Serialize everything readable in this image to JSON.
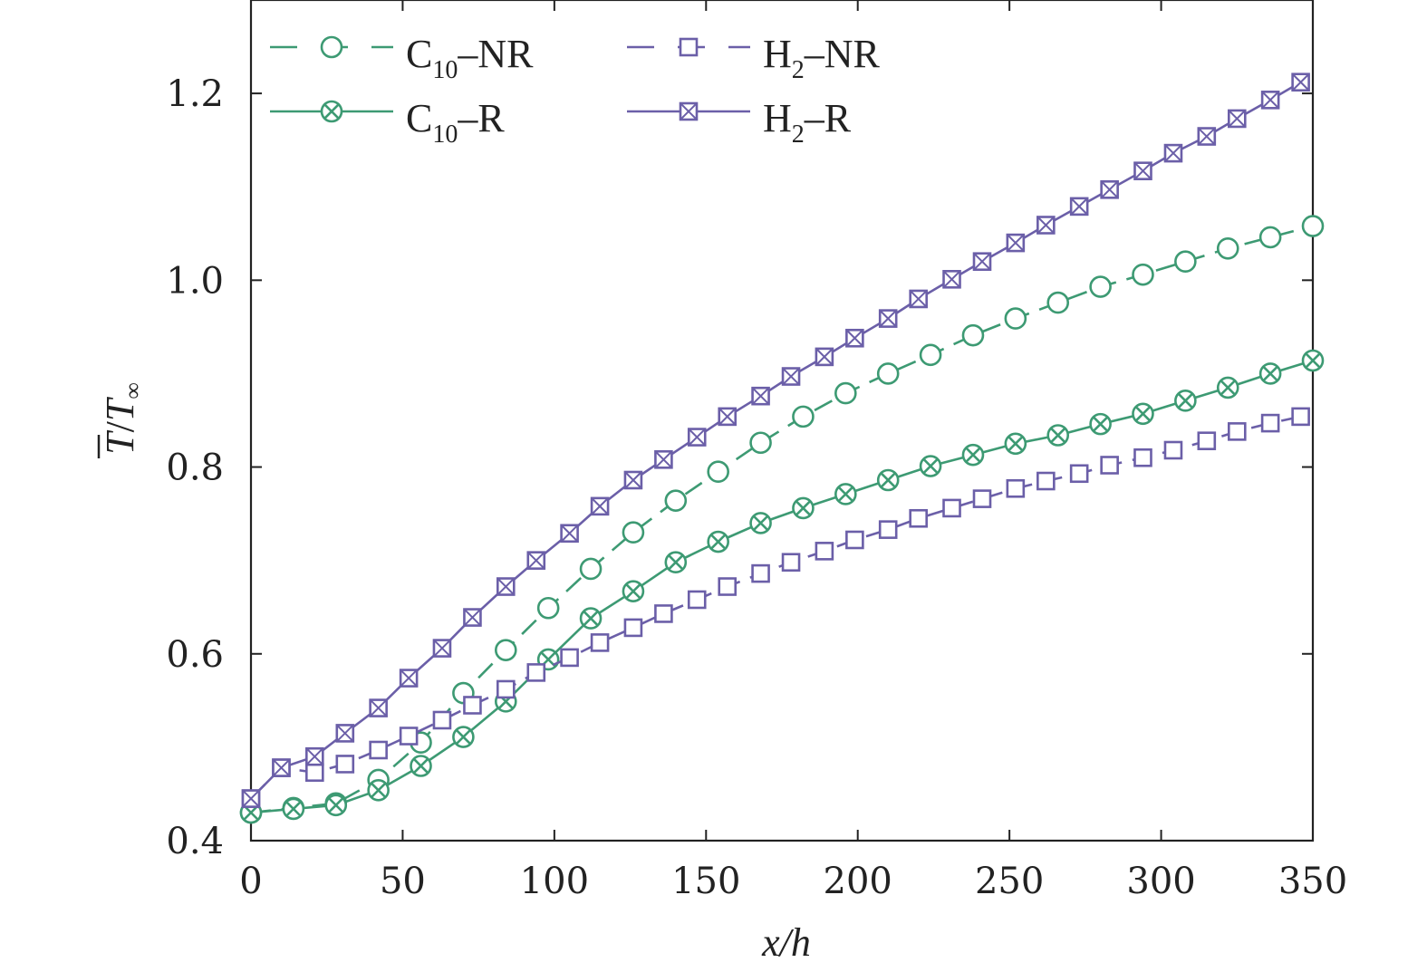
{
  "chart_data": {
    "type": "line",
    "xlabel": "x/h",
    "ylabel": "T/T∞",
    "ylabel_parts": {
      "main": "T",
      "sep": "/",
      "sub": "T",
      "subscript": "∞"
    },
    "xlim": [
      0,
      350
    ],
    "ylim": [
      0.4,
      1.3
    ],
    "xticks": [
      0,
      50,
      100,
      150,
      200,
      250,
      300,
      350
    ],
    "xtick_labels": [
      "0",
      "50",
      "100",
      "150",
      "200",
      "250",
      "300",
      "350"
    ],
    "yticks": [
      0.4,
      0.6,
      0.8,
      1.0,
      1.2
    ],
    "ytick_labels": [
      "0.4",
      "0.6",
      "0.8",
      "1.0",
      "1.2"
    ],
    "legend_position": "top-left",
    "series": [
      {
        "name": "C10-NR",
        "label_main": "C",
        "label_sub": "10",
        "label_rest": "–NR",
        "color": "#3d9a73",
        "dash": "dashed",
        "marker": "circle",
        "x": [
          0,
          14,
          28,
          42,
          56,
          70,
          84,
          98,
          112,
          126,
          140,
          154,
          168,
          182,
          196,
          210,
          224,
          238,
          252,
          266,
          280,
          294,
          308,
          322,
          336,
          350
        ],
        "y": [
          0.43,
          0.435,
          0.44,
          0.465,
          0.505,
          0.558,
          0.604,
          0.649,
          0.691,
          0.73,
          0.764,
          0.795,
          0.826,
          0.854,
          0.879,
          0.9,
          0.92,
          0.941,
          0.959,
          0.976,
          0.993,
          1.006,
          1.02,
          1.034,
          1.046,
          1.058
        ]
      },
      {
        "name": "C10-R",
        "label_main": "C",
        "label_sub": "10",
        "label_rest": "–R",
        "color": "#3d9a73",
        "dash": "solid",
        "marker": "circle-x",
        "x": [
          0,
          14,
          28,
          42,
          56,
          70,
          84,
          98,
          112,
          126,
          140,
          154,
          168,
          182,
          196,
          210,
          224,
          238,
          252,
          266,
          280,
          294,
          308,
          322,
          336,
          350
        ],
        "y": [
          0.43,
          0.434,
          0.438,
          0.454,
          0.48,
          0.511,
          0.549,
          0.594,
          0.638,
          0.667,
          0.698,
          0.72,
          0.74,
          0.756,
          0.771,
          0.786,
          0.801,
          0.813,
          0.825,
          0.834,
          0.846,
          0.857,
          0.871,
          0.885,
          0.9,
          0.914
        ]
      },
      {
        "name": "H2-NR",
        "label_main": "H",
        "label_sub": "2",
        "label_rest": "–NR",
        "color": "#6b5fa8",
        "dash": "dashed",
        "marker": "square",
        "x": [
          0,
          10,
          21,
          31,
          42,
          52,
          63,
          73,
          84,
          94,
          105,
          115,
          126,
          136,
          147,
          157,
          168,
          178,
          189,
          199,
          210,
          220,
          231,
          241,
          252,
          262,
          273,
          283,
          294,
          304,
          315,
          325,
          336,
          346
        ],
        "y": [
          0.445,
          0.478,
          0.473,
          0.482,
          0.497,
          0.512,
          0.529,
          0.545,
          0.562,
          0.58,
          0.596,
          0.612,
          0.628,
          0.643,
          0.658,
          0.672,
          0.686,
          0.698,
          0.71,
          0.722,
          0.733,
          0.745,
          0.756,
          0.766,
          0.777,
          0.785,
          0.793,
          0.802,
          0.81,
          0.818,
          0.828,
          0.838,
          0.847,
          0.854
        ]
      },
      {
        "name": "H2-R",
        "label_main": "H",
        "label_sub": "2",
        "label_rest": "–R",
        "color": "#6b5fa8",
        "dash": "solid",
        "marker": "square-x",
        "x": [
          0,
          10,
          21,
          31,
          42,
          52,
          63,
          73,
          84,
          94,
          105,
          115,
          126,
          136,
          147,
          157,
          168,
          178,
          189,
          199,
          210,
          220,
          231,
          241,
          252,
          262,
          273,
          283,
          294,
          304,
          315,
          325,
          336,
          346
        ],
        "y": [
          0.445,
          0.478,
          0.49,
          0.515,
          0.542,
          0.574,
          0.606,
          0.639,
          0.672,
          0.7,
          0.729,
          0.758,
          0.786,
          0.808,
          0.832,
          0.854,
          0.876,
          0.897,
          0.918,
          0.938,
          0.959,
          0.98,
          1.001,
          1.02,
          1.04,
          1.059,
          1.079,
          1.097,
          1.117,
          1.136,
          1.154,
          1.173,
          1.193,
          1.212
        ]
      }
    ]
  }
}
